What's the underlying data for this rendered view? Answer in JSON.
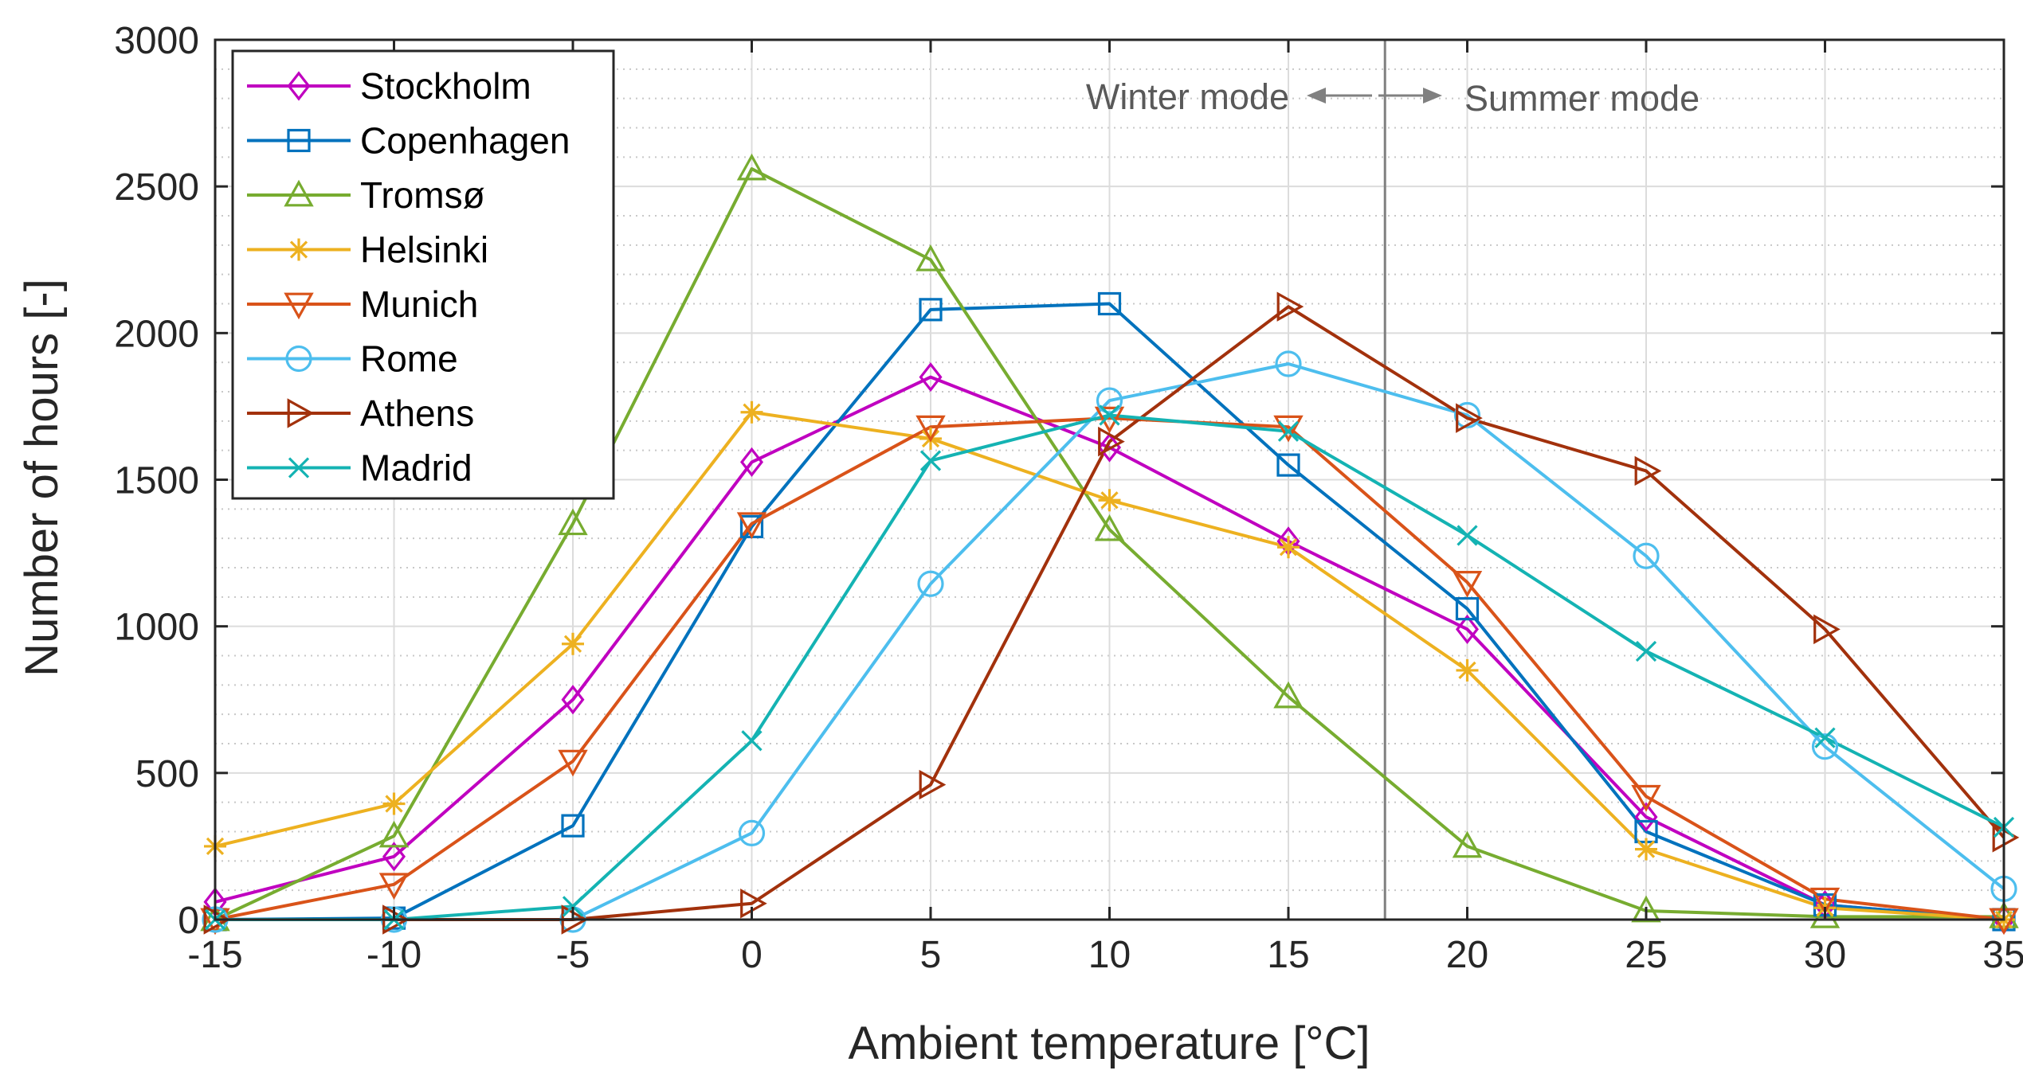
{
  "chart_data": {
    "type": "line",
    "title": "",
    "xlabel": "Ambient temperature [°C]",
    "ylabel": "Number of hours [-]",
    "xlim": [
      -15,
      35
    ],
    "ylim": [
      0,
      3000
    ],
    "x": [
      -15,
      -10,
      -5,
      0,
      5,
      10,
      15,
      20,
      25,
      30,
      35
    ],
    "xticks": [
      "-15",
      "-10",
      "-5",
      "0",
      "5",
      "10",
      "15",
      "20",
      "25",
      "30",
      "35"
    ],
    "yticks": [
      "0",
      "500",
      "1000",
      "1500",
      "2000",
      "2500",
      "3000"
    ],
    "grid": true,
    "minor_grid": true,
    "legend_position": "top-left",
    "divider_x": 17.7,
    "annotations": {
      "winter": "Winter mode",
      "summer": "Summer mode"
    },
    "series": [
      {
        "name": "Stockholm",
        "color": "#C000C0",
        "marker": "diamond",
        "values": [
          60,
          215,
          750,
          1560,
          1850,
          1610,
          1290,
          990,
          350,
          50,
          0
        ]
      },
      {
        "name": "Copenhagen",
        "color": "#0072BD",
        "marker": "square",
        "values": [
          0,
          5,
          320,
          1340,
          2080,
          2100,
          1550,
          1060,
          300,
          50,
          0
        ]
      },
      {
        "name": "Tromsø",
        "color": "#77AC30",
        "marker": "triangle-up",
        "values": [
          0,
          285,
          1350,
          2560,
          2250,
          1330,
          760,
          250,
          30,
          10,
          10
        ]
      },
      {
        "name": "Helsinki",
        "color": "#EDB120",
        "marker": "asterisk",
        "values": [
          250,
          395,
          940,
          1730,
          1640,
          1430,
          1270,
          850,
          240,
          40,
          0
        ]
      },
      {
        "name": "Munich",
        "color": "#D95319",
        "marker": "triangle-down",
        "values": [
          0,
          120,
          540,
          1350,
          1680,
          1710,
          1680,
          1150,
          420,
          70,
          0
        ]
      },
      {
        "name": "Rome",
        "color": "#4DBEEE",
        "marker": "circle",
        "values": [
          0,
          0,
          0,
          295,
          1145,
          1770,
          1895,
          1720,
          1240,
          590,
          105
        ]
      },
      {
        "name": "Athens",
        "color": "#A2310C",
        "marker": "triangle-right",
        "values": [
          0,
          0,
          0,
          55,
          460,
          1630,
          2090,
          1710,
          1530,
          990,
          280
        ]
      },
      {
        "name": "Madrid",
        "color": "#14B3B3",
        "marker": "cross",
        "values": [
          0,
          0,
          45,
          610,
          1565,
          1720,
          1665,
          1310,
          915,
          620,
          315
        ]
      }
    ]
  }
}
